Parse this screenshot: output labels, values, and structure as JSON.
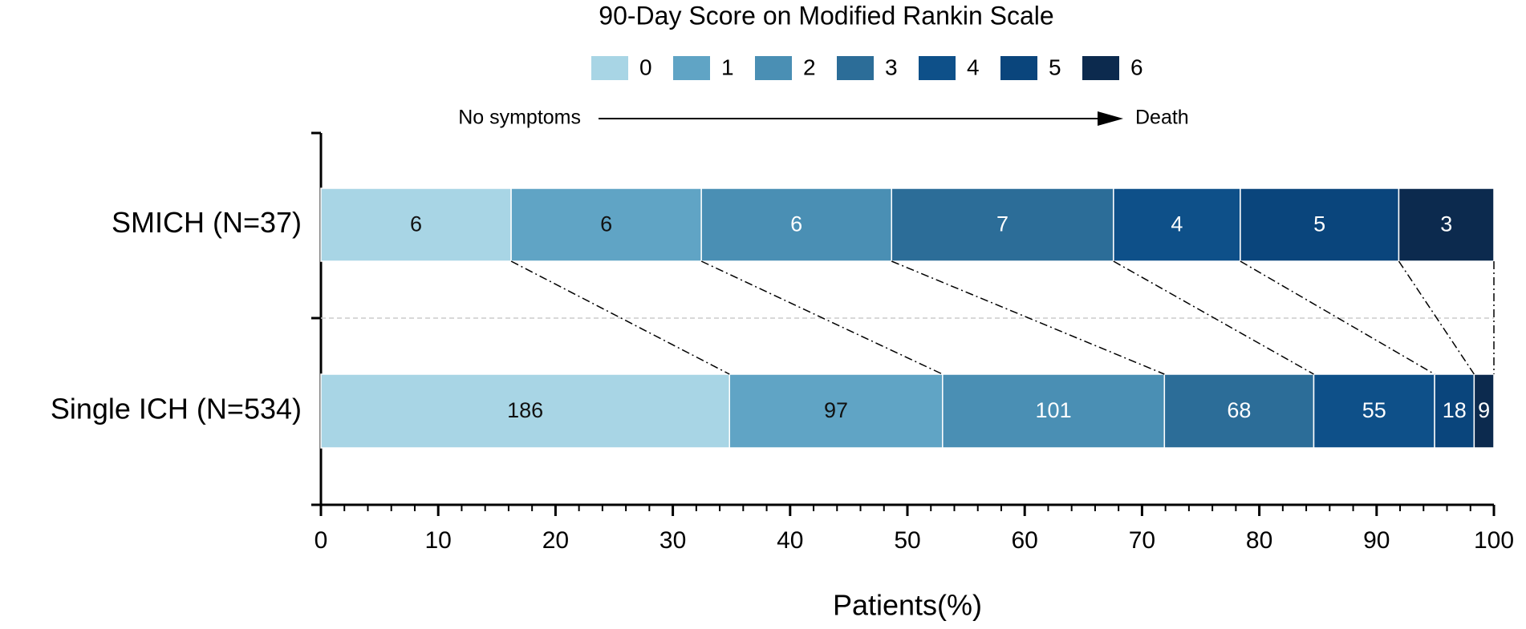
{
  "chart_data": {
    "type": "bar",
    "orientation": "horizontal",
    "stacking": "percent",
    "title": "90-Day Score on Modified Rankin Scale",
    "x_label": "Patients(%)",
    "annotation_start": "No symptoms",
    "annotation_end": "Death",
    "categories": [
      "SMICH (N=37)",
      "Single ICH (N=534)"
    ],
    "series": [
      {
        "name": "0",
        "color": "#a8d5e5",
        "values": [
          6,
          186
        ]
      },
      {
        "name": "1",
        "color": "#60a4c5",
        "values": [
          6,
          97
        ]
      },
      {
        "name": "2",
        "color": "#4a8fb4",
        "values": [
          6,
          101
        ]
      },
      {
        "name": "3",
        "color": "#2c6d98",
        "values": [
          7,
          68
        ]
      },
      {
        "name": "4",
        "color": "#0e5089",
        "values": [
          4,
          55
        ]
      },
      {
        "name": "5",
        "color": "#0a457c",
        "values": [
          5,
          18
        ]
      },
      {
        "name": "6",
        "color": "#0c2a4e",
        "values": [
          3,
          9
        ]
      }
    ],
    "xlim": [
      0,
      100
    ],
    "xticks": [
      0,
      10,
      20,
      30,
      40,
      50,
      60,
      70,
      80,
      90,
      100
    ],
    "xminorticks": [
      2,
      4,
      6,
      8,
      12,
      14,
      16,
      18,
      22,
      24,
      26,
      28,
      32,
      34,
      36,
      38,
      42,
      44,
      46,
      48,
      52,
      54,
      56,
      58,
      62,
      64,
      66,
      68,
      72,
      74,
      76,
      78,
      82,
      84,
      86,
      88,
      92,
      94,
      96,
      98
    ]
  }
}
